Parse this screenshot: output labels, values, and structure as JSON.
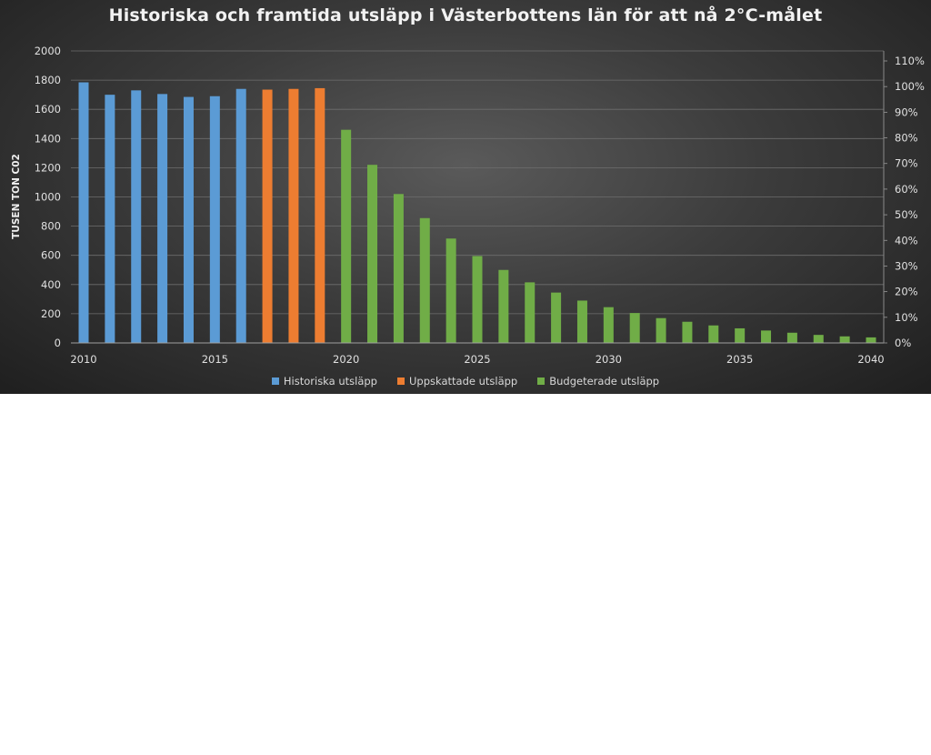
{
  "chart_data": {
    "type": "bar",
    "title": "Historiska och framtida utsläpp i Västerbottens län för att nå 2°C-målet",
    "ylabel": "TUSEN TON C02",
    "ylim": [
      0,
      2000
    ],
    "y_ticks": [
      "0",
      "200",
      "400",
      "600",
      "800",
      "1000",
      "1200",
      "1400",
      "1600",
      "1800",
      "2000"
    ],
    "y2lim": [
      0,
      110
    ],
    "y2_ticks": [
      "0%",
      "10%",
      "20%",
      "30%",
      "40%",
      "50%",
      "60%",
      "70%",
      "80%",
      "90%",
      "100%",
      "110%"
    ],
    "x_tick_labels": [
      "2010",
      "2015",
      "2020",
      "2025",
      "2030",
      "2035",
      "2040"
    ],
    "grid": "horizontal",
    "legend_position": "bottom",
    "colors": {
      "Historiska utsläpp": "#5b9bd5",
      "Uppskattade utsläpp": "#ed7d31",
      "Budgeterade utsläpp": "#70ad47"
    },
    "series": [
      {
        "name": "Historiska utsläpp",
        "x": [
          2010,
          2011,
          2012,
          2013,
          2014,
          2015,
          2016
        ],
        "values": [
          1785,
          1700,
          1730,
          1705,
          1685,
          1690,
          1740
        ]
      },
      {
        "name": "Uppskattade utsläpp",
        "x": [
          2017,
          2018,
          2019
        ],
        "values": [
          1735,
          1740,
          1745
        ]
      },
      {
        "name": "Budgeterade utsläpp",
        "x": [
          2020,
          2021,
          2022,
          2023,
          2024,
          2025,
          2026,
          2027,
          2028,
          2029,
          2030,
          2031,
          2032,
          2033,
          2034,
          2035,
          2036,
          2037,
          2038,
          2039,
          2040
        ],
        "values": [
          1460,
          1220,
          1020,
          855,
          715,
          595,
          500,
          415,
          345,
          290,
          245,
          205,
          170,
          145,
          120,
          100,
          85,
          70,
          55,
          45,
          38
        ]
      }
    ]
  }
}
